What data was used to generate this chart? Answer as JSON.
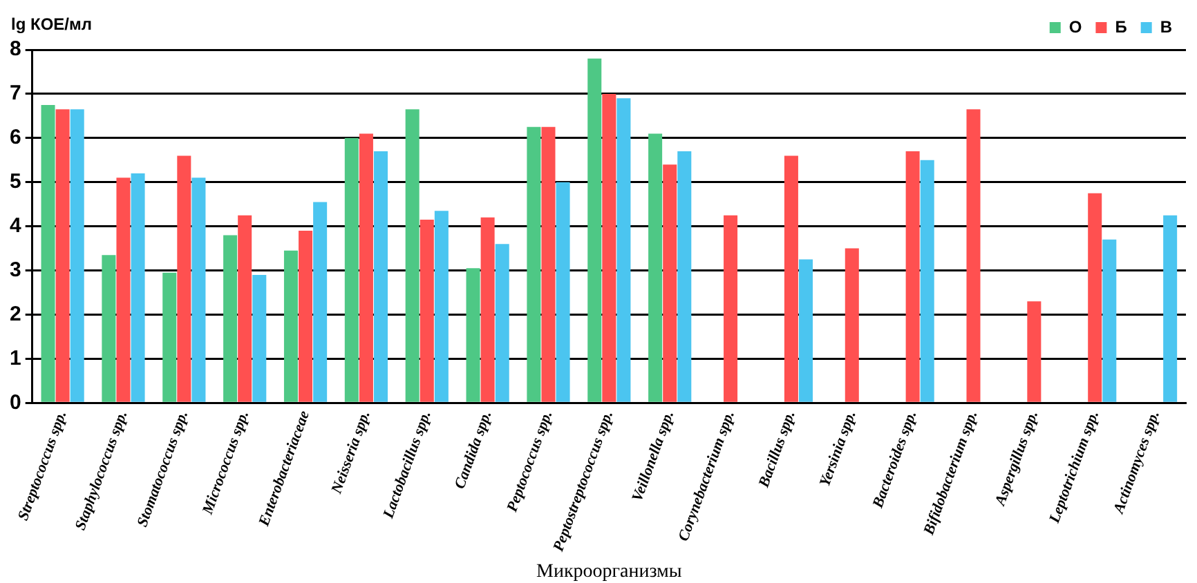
{
  "chart_data": {
    "type": "bar",
    "ylabel": "lg КОЕ/мл",
    "xlabel": "Микроорганизмы",
    "categories": [
      "Streptococcus spp.",
      "Staphylococcus spp.",
      "Stomatococcus spp.",
      "Micrococcus spp.",
      "Enterobacteriaceae",
      "Neisseria spp.",
      "Lactobacillus spp.",
      "Candida spp.",
      "Peptococcus spp.",
      "Peptostreptococcus spp.",
      "Veillonella spp.",
      "Corynebacterium spp.",
      "Bacillus spp.",
      "Yersinia spp.",
      "Bacteroides spp.",
      "Bifidobacterium spp.",
      "Aspergillus spp.",
      "Leptotrichium spp.",
      "Actinomyces spp."
    ],
    "series": [
      {
        "name": "О",
        "color": "#4ec885",
        "values": [
          6.75,
          3.35,
          2.95,
          3.8,
          3.45,
          6.0,
          6.65,
          3.05,
          6.25,
          7.8,
          6.1,
          null,
          null,
          null,
          null,
          null,
          null,
          null,
          null
        ]
      },
      {
        "name": "Б",
        "color": "#ff5050",
        "values": [
          6.65,
          5.1,
          5.6,
          4.25,
          3.9,
          6.1,
          4.15,
          4.2,
          6.25,
          7.0,
          5.4,
          4.25,
          5.6,
          3.5,
          5.7,
          6.65,
          2.3,
          4.75,
          null
        ]
      },
      {
        "name": "В",
        "color": "#4bc5f0",
        "values": [
          6.65,
          5.2,
          5.1,
          2.9,
          4.55,
          5.7,
          4.35,
          3.6,
          5.0,
          6.9,
          5.7,
          null,
          3.25,
          null,
          5.5,
          null,
          null,
          3.7,
          4.25
        ]
      }
    ],
    "ylim": [
      0,
      8
    ],
    "yticks": [
      0,
      1,
      2,
      3,
      4,
      5,
      6,
      7,
      8
    ],
    "grid": "y",
    "legend": "top right"
  }
}
